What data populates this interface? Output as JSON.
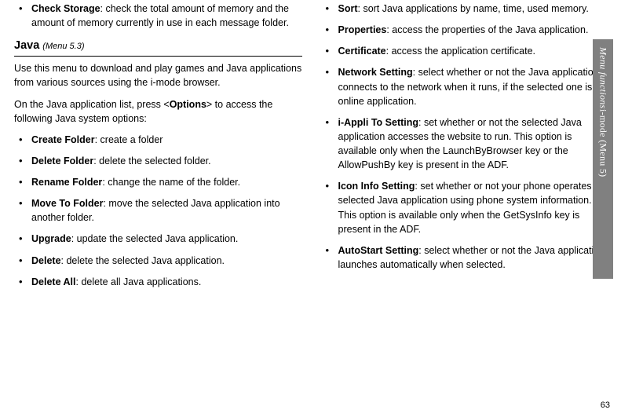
{
  "page_number": "63",
  "side_tab": {
    "italic": "Menu functions",
    "spacer": "    ",
    "plain": "i-mode (Menu 5)"
  },
  "col1": {
    "check_storage": {
      "term": "Check Storage",
      "desc": ": check the total amount of memory and the amount of memory currently in use in each message folder."
    },
    "java_head": "Java",
    "java_menu": "(Menu 5.3)",
    "java_intro": "Use this menu to download and play games and Java applications from various sources using the i-mode browser.",
    "java_instr_pre": "On the Java application list, press <",
    "java_instr_opt": "Options",
    "java_instr_post": "> to access the following Java system options:",
    "items": [
      {
        "term": "Create Folder",
        "desc": ": create a folder"
      },
      {
        "term": "Delete Folder",
        "desc": ": delete the selected folder."
      },
      {
        "term": "Rename Folder",
        "desc": ": change the name of the folder."
      },
      {
        "term": "Move To Folder",
        "desc": ": move the selected Java application into another folder."
      },
      {
        "term": "Upgrade",
        "desc": ": update the selected Java application."
      },
      {
        "term": "Delete",
        "desc": ": delete the selected Java application."
      },
      {
        "term": "Delete All",
        "desc": ": delete all Java applications."
      }
    ]
  },
  "col2": {
    "items": [
      {
        "term": "Sort",
        "desc": ": sort Java applications by name, time, used memory."
      },
      {
        "term": "Properties",
        "desc": ": access the properties of the Java application."
      },
      {
        "term": "Certificate",
        "desc": ": access the application certificate."
      },
      {
        "term": "Network Setting",
        "desc": ": select whether or not the Java application connects to the network when it runs, if the selected one is an online application."
      },
      {
        "term": "i-Appli To Setting",
        "desc": ": set whether or not the selected Java application accesses the website to run. This option is available only when the LaunchByBrowser key or the AllowPushBy key is present in the ADF."
      },
      {
        "term": "Icon Info Setting",
        "desc": ": set whether or not your phone operates the selected Java application using phone system information. This option is available only when the GetSysInfo key is present in the ADF."
      },
      {
        "term": "AutoStart Setting",
        "desc": ": select whether or not the Java application launches automatically when selected."
      }
    ]
  }
}
